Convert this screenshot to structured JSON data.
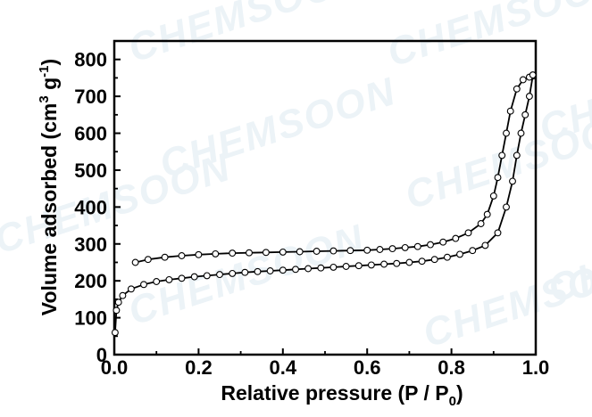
{
  "chart_data": {
    "type": "scatter",
    "title": "",
    "xlabel": "Relative pressure (P / P",
    "xlabel_sub": "0",
    "xlabel_end": ")",
    "ylabel_main": "Volume adsorbed (cm",
    "ylabel_sup1": "3",
    "ylabel_mid": " g",
    "ylabel_sup2": "-1",
    "ylabel_end": ")",
    "xlim": [
      0.0,
      1.0
    ],
    "ylim": [
      0,
      850
    ],
    "xticks": [
      "0.0",
      "0.2",
      "0.4",
      "0.6",
      "0.8",
      "1.0"
    ],
    "yticks": [
      "0",
      "100",
      "200",
      "300",
      "400",
      "500",
      "600",
      "700",
      "800"
    ],
    "grid": false,
    "legend": "none",
    "marker": "open-circle",
    "watermark": "CHEMSOON",
    "series": [
      {
        "role": "adsorption",
        "x": [
          0.002,
          0.005,
          0.01,
          0.02,
          0.04,
          0.07,
          0.1,
          0.13,
          0.16,
          0.19,
          0.22,
          0.25,
          0.28,
          0.31,
          0.34,
          0.37,
          0.4,
          0.43,
          0.46,
          0.49,
          0.52,
          0.55,
          0.58,
          0.61,
          0.64,
          0.67,
          0.7,
          0.73,
          0.76,
          0.79,
          0.82,
          0.85,
          0.88,
          0.91,
          0.93,
          0.945,
          0.955,
          0.965,
          0.975,
          0.985,
          0.993
        ],
        "y": [
          60,
          120,
          142,
          160,
          178,
          190,
          198,
          203,
          207,
          211,
          214,
          217,
          220,
          223,
          225,
          227,
          229,
          231,
          233,
          235,
          237,
          239,
          241,
          243,
          245,
          247,
          250,
          253,
          258,
          264,
          272,
          282,
          296,
          330,
          400,
          470,
          540,
          600,
          650,
          700,
          755
        ]
      },
      {
        "role": "desorption",
        "x": [
          0.05,
          0.08,
          0.12,
          0.16,
          0.2,
          0.24,
          0.28,
          0.32,
          0.36,
          0.4,
          0.44,
          0.48,
          0.52,
          0.56,
          0.6,
          0.63,
          0.66,
          0.69,
          0.72,
          0.75,
          0.78,
          0.81,
          0.84,
          0.87,
          0.885,
          0.9,
          0.91,
          0.92,
          0.93,
          0.94,
          0.955,
          0.97,
          0.985,
          0.993
        ],
        "y": [
          250,
          258,
          264,
          268,
          271,
          273,
          275,
          276,
          277,
          278,
          279,
          280,
          281,
          282,
          283,
          285,
          287,
          290,
          293,
          298,
          305,
          315,
          330,
          355,
          380,
          430,
          480,
          540,
          600,
          660,
          720,
          745,
          752,
          758
        ]
      }
    ]
  }
}
